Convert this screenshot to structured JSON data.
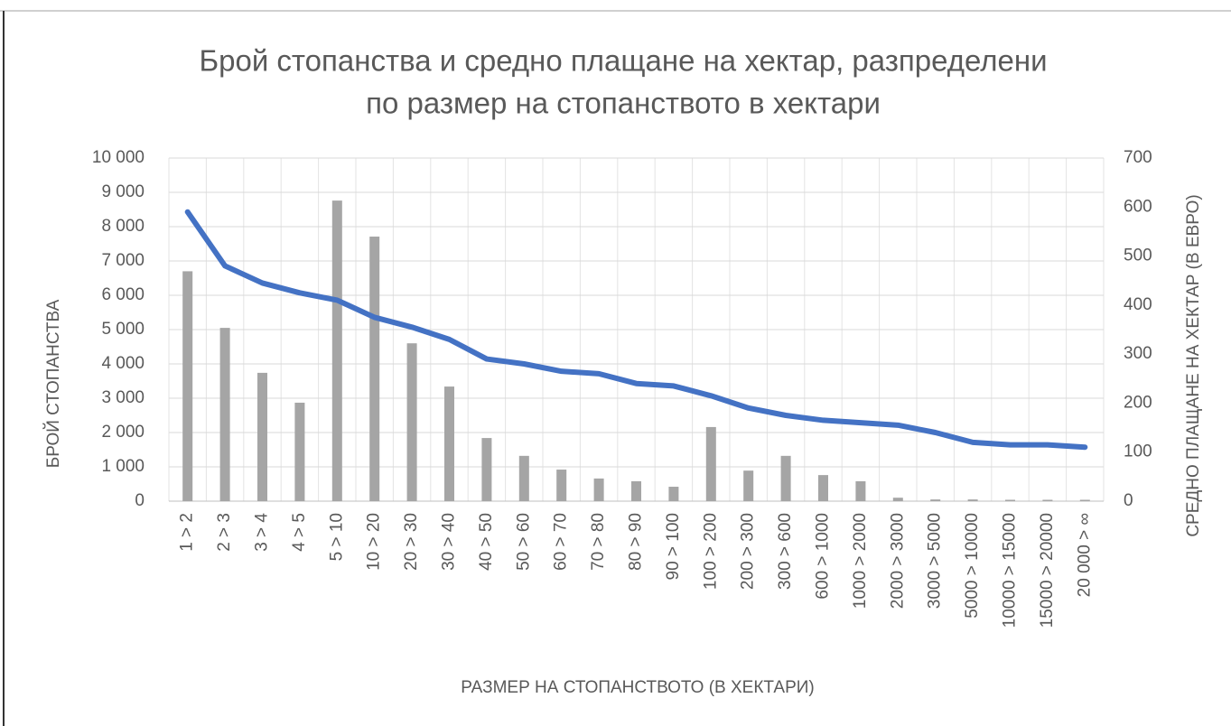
{
  "chart_data": {
    "type": "bar-line",
    "title": [
      "Брой стопанства и средно плащане на хектар, разпределени",
      "по размер на стопанството в хектари"
    ],
    "x_label": "РАЗМЕР НА СТОПАНСТВОТО (В ХЕКТАРИ)",
    "y_label": "БРОЙ СТОПАНСТВА",
    "y2_label": "СРЕДНО ПЛАЩАНЕ НА ХЕКТАР (В ЕВРО)",
    "categories": [
      "1 > 2",
      "2 > 3",
      "3 > 4",
      "4 > 5",
      "5 > 10",
      "10 > 20",
      "20 > 30",
      "30 > 40",
      "40 > 50",
      "50 > 60",
      "60 > 70",
      "70 > 80",
      "80 > 90",
      "90 > 100",
      "100 > 200",
      "200 > 300",
      "300 > 600",
      "600 > 1000",
      "1000 > 2000",
      "2000 > 3000",
      "3000 > 5000",
      "5000 > 10000",
      "10000 > 15000",
      "15000 > 20000",
      "20 000 > ∞"
    ],
    "series": [
      {
        "type": "bar",
        "color": "#a5a5a5",
        "values": [
          6700,
          5050,
          3740,
          2870,
          8760,
          7710,
          4600,
          3340,
          1840,
          1320,
          920,
          660,
          580,
          420,
          2160,
          890,
          1320,
          760,
          580,
          100,
          50,
          50,
          40,
          40,
          40
        ]
      },
      {
        "type": "line",
        "axis": "y2",
        "color": "#4472c4",
        "values": [
          590,
          480,
          445,
          425,
          410,
          375,
          355,
          330,
          290,
          280,
          265,
          260,
          240,
          235,
          215,
          190,
          175,
          165,
          160,
          155,
          140,
          120,
          115,
          115,
          110
        ]
      }
    ],
    "ylim": [
      0,
      10000
    ],
    "yticks": [
      0,
      {
        "value": 1000,
        "label": "1 000"
      },
      {
        "value": 2000,
        "label": "2 000"
      },
      {
        "value": 3000,
        "label": "3 000"
      },
      {
        "value": 4000,
        "label": "4 000"
      },
      {
        "value": 5000,
        "label": "5 000"
      },
      {
        "value": 6000,
        "label": "6 000"
      },
      {
        "value": 7000,
        "label": "7 000"
      },
      {
        "value": 8000,
        "label": "8 000"
      },
      {
        "value": 9000,
        "label": "9 000"
      },
      {
        "value": 10000,
        "label": "10 000"
      }
    ],
    "y2lim": [
      0,
      700
    ],
    "y2ticks": [
      0,
      100,
      200,
      300,
      400,
      500,
      600,
      700
    ],
    "grid": true
  }
}
